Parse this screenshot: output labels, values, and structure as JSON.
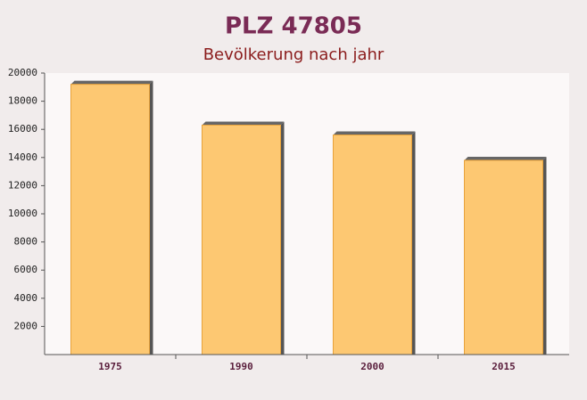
{
  "chart_data": {
    "type": "bar",
    "title": "PLZ 47805",
    "subtitle": "Bevölkerung nach jahr",
    "categories": [
      "1975",
      "1990",
      "2000",
      "2015"
    ],
    "values": [
      19200,
      16300,
      15600,
      13800
    ],
    "color": "#fdbf5a",
    "ylim": [
      0,
      20000
    ],
    "yticks": [
      2000,
      4000,
      6000,
      8000,
      10000,
      12000,
      14000,
      16000,
      18000,
      20000
    ]
  }
}
